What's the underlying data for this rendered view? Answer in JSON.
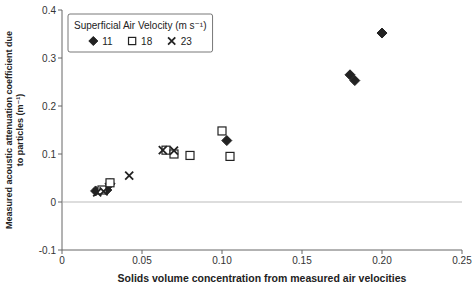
{
  "chart_data": {
    "type": "scatter",
    "xlabel": "Solids volume concentration from measured air velocities",
    "ylabel": "Measured acoustic attenuation coefficient due\nto particles (m⁻¹)",
    "legend_title": "Superficial Air Velocity (m s⁻¹)",
    "xlim": [
      0,
      0.25
    ],
    "ylim": [
      -0.1,
      0.4
    ],
    "xticks": [
      0,
      0.05,
      {
        "value": 0.1,
        "label": "0.10"
      },
      0.15,
      {
        "value": 0.2,
        "label": "0.20"
      },
      0.25
    ],
    "yticks": [
      -0.1,
      0,
      0.1,
      0.2,
      0.3,
      0.4
    ],
    "grid": false,
    "legend": "upper left",
    "series": [
      {
        "name": "11",
        "color": "#222222",
        "marker": "diamond",
        "x": [
          0.021,
          0.028,
          0.03,
          0.103,
          0.18,
          0.183,
          0.2
        ],
        "values": [
          0.023,
          0.025,
          0.038,
          0.128,
          0.265,
          0.253,
          0.352
        ]
      },
      {
        "name": "18",
        "color": "#222222",
        "marker": "square-open",
        "x": [
          0.025,
          0.03,
          0.065,
          0.07,
          0.08,
          0.1,
          0.105
        ],
        "values": [
          0.025,
          0.04,
          0.108,
          0.1,
          0.097,
          0.148,
          0.095
        ]
      },
      {
        "name": "23",
        "color": "#222222",
        "marker": "x",
        "x": [
          0.022,
          0.026,
          0.042,
          0.063,
          0.07
        ],
        "values": [
          0.02,
          0.022,
          0.055,
          0.108,
          0.107
        ]
      }
    ]
  }
}
